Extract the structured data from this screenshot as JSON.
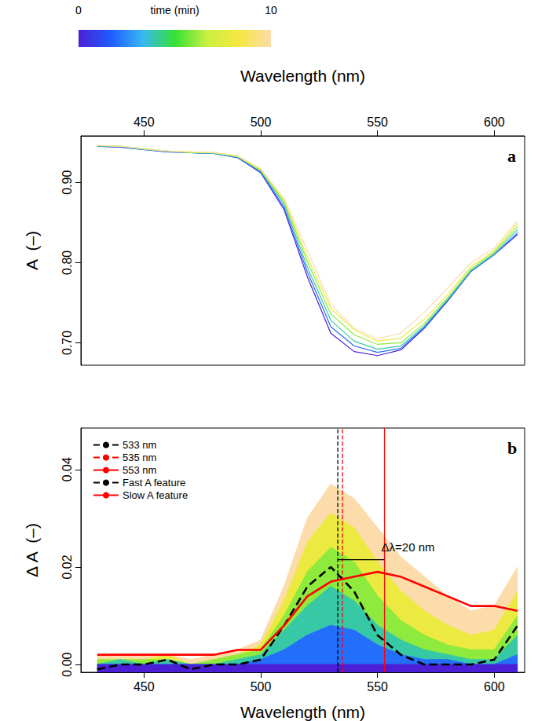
{
  "chart_data": [
    {
      "type": "line",
      "panel": "a",
      "colorbar": {
        "label": "time (min)",
        "range": [
          0,
          10
        ],
        "ticks": [
          0,
          10
        ],
        "colors": [
          "#4b1fd6",
          "#1f5cff",
          "#38b8f0",
          "#36e036",
          "#c8f040",
          "#f5e840",
          "#fbdcaa"
        ]
      },
      "xlabel": "Wavelength (nm)",
      "ylabel": "A  (–)",
      "xlim": [
        423,
        613
      ],
      "xticks": [
        450,
        500,
        550,
        600
      ],
      "ylim": [
        0.672,
        0.958
      ],
      "yticks": [
        {
          "value": 0.7,
          "label": "0.70"
        },
        {
          "value": 0.8,
          "label": "0.80"
        },
        {
          "value": 0.9,
          "label": "0.90"
        }
      ],
      "grid": false,
      "x": [
        430,
        440,
        450,
        460,
        470,
        480,
        490,
        500,
        510,
        520,
        530,
        540,
        550,
        560,
        570,
        580,
        590,
        600,
        610
      ],
      "series": [
        {
          "time": 0,
          "values": [
            0.945,
            0.944,
            0.941,
            0.938,
            0.937,
            0.936,
            0.931,
            0.912,
            0.866,
            0.782,
            0.712,
            0.689,
            0.684,
            0.691,
            0.718,
            0.752,
            0.789,
            0.81,
            0.835
          ]
        },
        {
          "time": 2,
          "values": [
            0.945,
            0.944,
            0.941,
            0.938,
            0.937,
            0.936,
            0.931,
            0.913,
            0.869,
            0.788,
            0.72,
            0.696,
            0.688,
            0.693,
            0.719,
            0.753,
            0.789,
            0.81,
            0.837
          ]
        },
        {
          "time": 4,
          "values": [
            0.945,
            0.945,
            0.941,
            0.939,
            0.937,
            0.936,
            0.932,
            0.914,
            0.873,
            0.794,
            0.728,
            0.702,
            0.692,
            0.696,
            0.721,
            0.754,
            0.79,
            0.811,
            0.841
          ]
        },
        {
          "time": 6,
          "values": [
            0.946,
            0.945,
            0.942,
            0.939,
            0.937,
            0.937,
            0.932,
            0.915,
            0.876,
            0.801,
            0.736,
            0.71,
            0.698,
            0.7,
            0.724,
            0.756,
            0.792,
            0.813,
            0.845
          ]
        },
        {
          "time": 8,
          "values": [
            0.946,
            0.945,
            0.942,
            0.939,
            0.938,
            0.937,
            0.933,
            0.916,
            0.878,
            0.807,
            0.743,
            0.716,
            0.702,
            0.706,
            0.729,
            0.76,
            0.795,
            0.815,
            0.849
          ]
        },
        {
          "time": 10,
          "values": [
            0.946,
            0.945,
            0.942,
            0.939,
            0.938,
            0.937,
            0.933,
            0.917,
            0.88,
            0.815,
            0.748,
            0.718,
            0.705,
            0.712,
            0.738,
            0.768,
            0.8,
            0.818,
            0.852
          ]
        }
      ]
    },
    {
      "type": "line",
      "panel": "b",
      "xlabel": "Wavelength (nm)",
      "ylabel": "Δ A  (–)",
      "xlim": [
        423,
        613
      ],
      "xticks": [
        450,
        500,
        550,
        600
      ],
      "ylim": [
        -0.0016,
        0.0485
      ],
      "yticks": [
        {
          "value": 0,
          "label": "0.00"
        },
        {
          "value": 0.02,
          "label": "0.02"
        },
        {
          "value": 0.04,
          "label": "0.04"
        }
      ],
      "grid": false,
      "legend": "upper left",
      "x": [
        430,
        440,
        450,
        460,
        470,
        480,
        490,
        500,
        510,
        520,
        530,
        540,
        550,
        560,
        570,
        580,
        590,
        600,
        610
      ],
      "series": [
        {
          "time": 0,
          "values": [
            0.0,
            0.0,
            0.0,
            0.0,
            0.0,
            0.0,
            0.0,
            0.0,
            0.0,
            0.0,
            0.0,
            0.0,
            0.0,
            0.0,
            0.0,
            0.0,
            0.0,
            0.0,
            0.0
          ]
        },
        {
          "time": 2,
          "values": [
            0.0,
            0.0,
            0.0,
            0.0,
            0.0,
            0.0,
            0.0,
            0.001,
            0.003,
            0.006,
            0.008,
            0.007,
            0.004,
            0.002,
            0.001,
            0.001,
            0.0,
            0.0,
            0.002
          ]
        },
        {
          "time": 4,
          "values": [
            0.0,
            0.001,
            0.0,
            0.001,
            0.0,
            0.0,
            0.001,
            0.002,
            0.007,
            0.012,
            0.016,
            0.013,
            0.008,
            0.005,
            0.003,
            0.002,
            0.001,
            0.001,
            0.006
          ]
        },
        {
          "time": 6,
          "values": [
            0.001,
            0.001,
            0.001,
            0.001,
            0.0,
            0.001,
            0.002,
            0.003,
            0.01,
            0.019,
            0.024,
            0.021,
            0.014,
            0.009,
            0.006,
            0.004,
            0.003,
            0.003,
            0.01
          ]
        },
        {
          "time": 8,
          "values": [
            0.001,
            0.001,
            0.001,
            0.002,
            0.0,
            0.001,
            0.002,
            0.004,
            0.013,
            0.025,
            0.031,
            0.028,
            0.021,
            0.015,
            0.011,
            0.008,
            0.006,
            0.007,
            0.015
          ]
        },
        {
          "time": 10,
          "values": [
            0.002,
            0.002,
            0.002,
            0.002,
            0.001,
            0.002,
            0.003,
            0.005,
            0.016,
            0.03,
            0.037,
            0.034,
            0.028,
            0.022,
            0.018,
            0.014,
            0.011,
            0.012,
            0.02
          ]
        },
        {
          "name": "Fast A feature",
          "color": "#000000",
          "line_style": "dashed",
          "values": [
            -0.001,
            0.0,
            0.0,
            0.001,
            -0.001,
            0.0,
            0.0,
            0.001,
            0.008,
            0.016,
            0.02,
            0.015,
            0.006,
            0.002,
            0.0,
            0.0,
            0.0,
            0.001,
            0.008
          ]
        },
        {
          "name": "Slow A feature",
          "color": "#ff0000",
          "line_style": "solid",
          "values": [
            0.002,
            0.002,
            0.002,
            0.002,
            0.002,
            0.002,
            0.003,
            0.003,
            0.008,
            0.014,
            0.017,
            0.018,
            0.019,
            0.018,
            0.016,
            0.014,
            0.012,
            0.012,
            0.011
          ]
        }
      ],
      "vlines": [
        {
          "name": "533 nm",
          "x": 533,
          "color": "#000000",
          "line_style": "dashed"
        },
        {
          "name": "535 nm",
          "x": 535,
          "color": "#ff0000",
          "line_style": "dashed"
        },
        {
          "name": "553 nm",
          "x": 553,
          "color": "#ff0000",
          "line_style": "solid"
        }
      ],
      "annotations": [
        {
          "text": "Δλ=20 nm",
          "x": [
            533,
            553
          ],
          "y": 0.0215
        }
      ]
    }
  ]
}
